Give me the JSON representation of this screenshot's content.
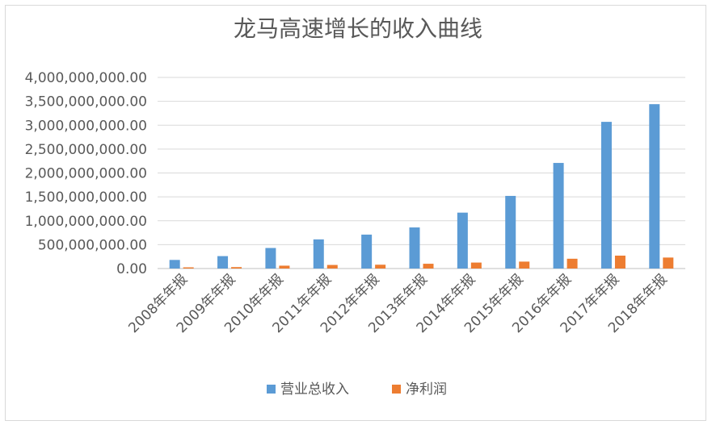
{
  "chart_data": {
    "type": "bar",
    "title": "龙马高速增长的收入曲线",
    "categories": [
      "2008年年报",
      "2009年年报",
      "2010年年报",
      "2011年年报",
      "2012年年报",
      "2013年年报",
      "2014年年报",
      "2015年年报",
      "2016年年报",
      "2017年年报",
      "2018年年报"
    ],
    "series": [
      {
        "name": "营业总收入",
        "color": "#5b9bd5",
        "values": [
          180000000,
          260000000,
          430000000,
          610000000,
          710000000,
          860000000,
          1170000000,
          1520000000,
          2210000000,
          3070000000,
          3440000000
        ]
      },
      {
        "name": "净利润",
        "color": "#ed7d31",
        "values": [
          25000000,
          30000000,
          60000000,
          75000000,
          80000000,
          100000000,
          125000000,
          145000000,
          205000000,
          270000000,
          230000000
        ]
      }
    ],
    "yticks": [
      "0.00",
      "500,000,000.00",
      "1,000,000,000.00",
      "1,500,000,000.00",
      "2,000,000,000.00",
      "2,500,000,000.00",
      "3,000,000,000.00",
      "3,500,000,000.00",
      "4,000,000,000.00"
    ],
    "ylim": [
      0,
      4000000000
    ],
    "grid": true,
    "legend_position": "bottom"
  }
}
